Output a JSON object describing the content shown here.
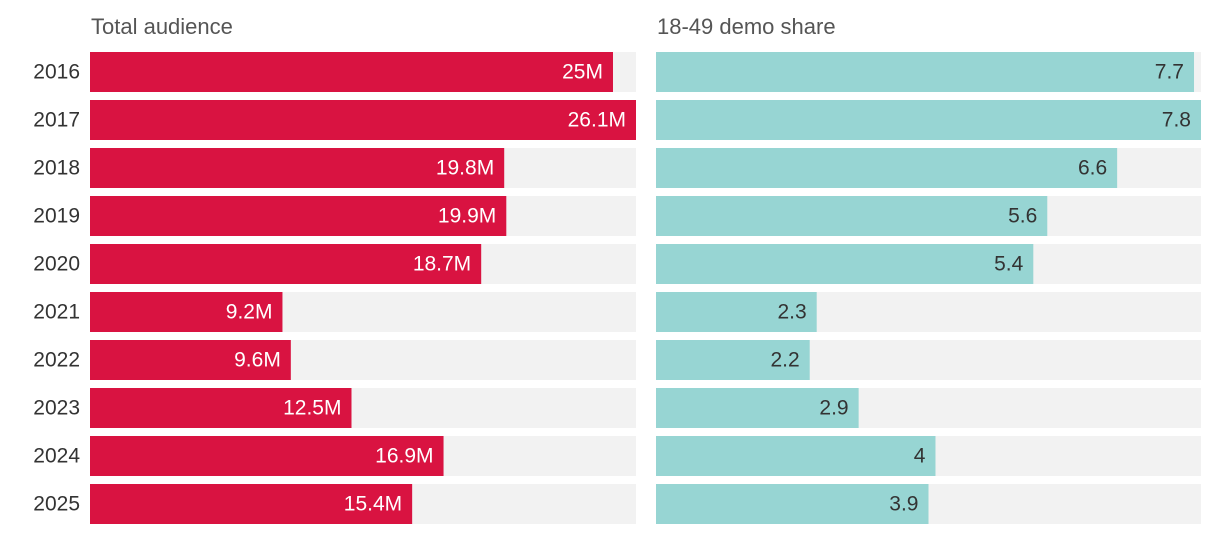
{
  "chart_data": {
    "type": "bar",
    "orientation": "horizontal",
    "categories": [
      "2016",
      "2017",
      "2018",
      "2019",
      "2020",
      "2021",
      "2022",
      "2023",
      "2024",
      "2025"
    ],
    "panels": [
      {
        "id": "audience",
        "title": "Total audience",
        "values": [
          25,
          26.1,
          19.8,
          19.9,
          18.7,
          9.2,
          9.6,
          12.5,
          16.9,
          15.4
        ],
        "labels": [
          "25M",
          "26.1M",
          "19.8M",
          "19.9M",
          "18.7M",
          "9.2M",
          "9.6M",
          "12.5M",
          "16.9M",
          "15.4M"
        ],
        "xlim": [
          0,
          26.1
        ],
        "bar_color": "#d91341",
        "label_color": "#ffffff"
      },
      {
        "id": "demo",
        "title": "18-49 demo share",
        "values": [
          7.7,
          7.8,
          6.6,
          5.6,
          5.4,
          2.3,
          2.2,
          2.9,
          4,
          3.9
        ],
        "labels": [
          "7.7",
          "7.8",
          "6.6",
          "5.6",
          "5.4",
          "2.3",
          "2.2",
          "2.9",
          "4",
          "3.9"
        ],
        "xlim": [
          0,
          7.8
        ],
        "bar_color": "#97d5d3",
        "label_color": "#333333"
      }
    ],
    "track_color": "#f2f2f2"
  }
}
